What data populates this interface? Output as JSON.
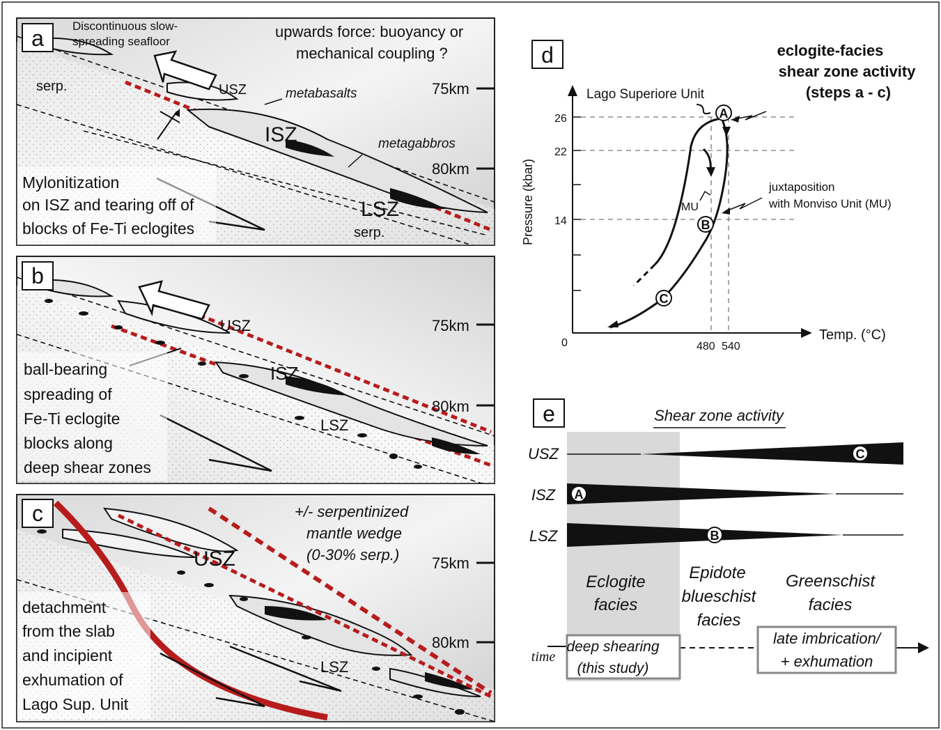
{
  "panels": {
    "a": {
      "letter": "a",
      "note_1": "Discontinuous slow-",
      "note_2": "spreading seafloor",
      "force_1": "upwards force: buoyancy or",
      "force_2": "mechanical coupling ?",
      "depth_75": "75km",
      "depth_80": "80km",
      "usz": "USZ",
      "isz": "ISZ",
      "lsz": "LSZ",
      "serp_top": "serp.",
      "serp_bottom": "serp.",
      "metabasalts": "metabasalts",
      "metagabbros": "metagabbros",
      "caption": [
        "Mylonitization",
        "on ISZ and tearing off of",
        "blocks of Fe-Ti eclogites"
      ]
    },
    "b": {
      "letter": "b",
      "depth_75": "75km",
      "depth_80": "80km",
      "usz": "USZ",
      "isz": "ISZ",
      "lsz": "LSZ",
      "caption": [
        "ball-bearing",
        "spreading of",
        "Fe-Ti eclogite",
        "blocks along",
        "deep shear zones"
      ]
    },
    "c": {
      "letter": "c",
      "wedge": [
        "+/- serpentinized",
        "mantle wedge",
        "(0-30% serp.)"
      ],
      "depth_75": "75km",
      "depth_80": "80km",
      "usz": "USZ",
      "lsz": "LSZ",
      "caption": [
        "detachment",
        "from the slab",
        "and incipient",
        "exhumation of",
        "Lago Sup. Unit"
      ]
    },
    "d": {
      "letter": "d",
      "title": [
        "eclogite-facies",
        "shear zone activity",
        "(steps a - c)"
      ],
      "unit_label": "Lago Superiore Unit",
      "y_axis": "Pressure (kbar)",
      "x_axis": "Temp. (°C)",
      "origin": "0",
      "p_ticks": [
        "26",
        "22",
        "14"
      ],
      "t_ticks": [
        "480",
        "540"
      ],
      "mu": "MU",
      "juxta": [
        "juxtaposition",
        "with Monviso Unit (MU)"
      ],
      "points": [
        "A",
        "B",
        "C"
      ]
    },
    "e": {
      "letter": "e",
      "title": "Shear zone activity",
      "rows": [
        "USZ",
        "ISZ",
        "LSZ"
      ],
      "markers": {
        "usz": "C",
        "isz": "A",
        "lsz": "B"
      },
      "facies": [
        {
          "lines": [
            "Eclogite",
            "facies"
          ]
        },
        {
          "lines": [
            "Epidote",
            "blueschist",
            "facies"
          ]
        },
        {
          "lines": [
            "Greenschist",
            "facies"
          ]
        }
      ],
      "time": "time",
      "box1": [
        "deep shearing",
        "(this study)"
      ],
      "box2": [
        "late imbrication/",
        "+ exhumation"
      ]
    }
  }
}
